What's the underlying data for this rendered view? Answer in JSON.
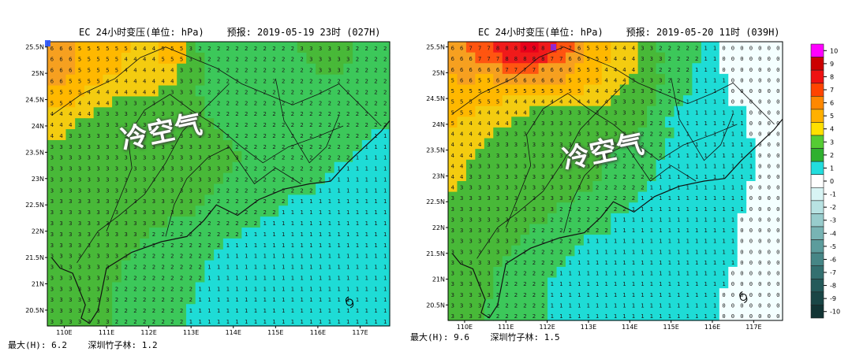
{
  "panels": [
    {
      "title": "EC 24小时变压(单位: hPa)    预报: 2019-05-19 23时 (027H)",
      "annotation": "冷空气",
      "stats": "最大(H): 6.2    深圳竹子林: 1.2",
      "x_ticks": [
        "110E",
        "111E",
        "112E",
        "113E",
        "114E",
        "115E",
        "116E",
        "117E"
      ],
      "y_ticks": [
        "25.5N",
        "25N",
        "24.5N",
        "24N",
        "23.5N",
        "23N",
        "22.5N",
        "22N",
        "21.5N",
        "21N",
        "20.5N"
      ]
    },
    {
      "title": "EC 24小时变压(单位: hPa)    预报: 2019-05-20 11时 (039H)",
      "annotation": "冷空气",
      "stats": "最大(H): 9.6    深圳竹子林: 1.5",
      "x_ticks": [
        "110E",
        "111E",
        "112E",
        "113E",
        "114E",
        "115E",
        "116E",
        "117E"
      ],
      "y_ticks": [
        "25.5N",
        "25N",
        "24.5N",
        "24N",
        "23.5N",
        "23N",
        "22.5N",
        "22N",
        "21.5N",
        "21N",
        "20.5N"
      ]
    }
  ],
  "chart_data": [
    {
      "type": "heatmap",
      "title": "EC 24小时变压(单位: hPa)",
      "forecast": "2019-05-19 23时 (027H)",
      "units": "hPa",
      "x_range": [
        109.6,
        117.7
      ],
      "y_range": [
        20.2,
        25.6
      ],
      "max_H": 6.2,
      "station_value": 1.2,
      "rows": [
        "6665555554445553222222222223333332222",
        "6665555544445553322222222222333332222",
        "6665555544444433322222222222233322222",
        "6655554444444433322222222222222222222",
        "5555444444443333222222222222222222222",
        "5554444333333333322222222222222222222",
        "4444433333333333322222222222222222222",
        "4443333333333333332222222222222222222",
        "4433333333333333333222222222222222211",
        "3333333333333333333322222222222222111",
        "3333333333333333333332222222222221111",
        "3333333333333333333322222222222111111",
        "3333333333333333333222222222221111111",
        "3333333333333333332222222222211111111",
        "3333333333333333322222222211111111111",
        "3333333333333333222222222111111111111",
        "3333333333333222222222211111111111111",
        "3333333333322222222221111111111111111",
        "3333333333222222222111111111111111111",
        "3333333332222222221111111111111111111",
        "3333333322222222211111111111111111111",
        "3333333322222222211111111111111111111",
        "3333333222222222111111111111111111111",
        "3333333222222222111111111111111111111",
        "3333333222222221111111111111111111111",
        "3333333222222221111111111111111111111"
      ]
    },
    {
      "type": "heatmap",
      "title": "EC 24小时变压(单位: hPa)",
      "forecast": "2019-05-20 11时 (039H)",
      "units": "hPa",
      "x_range": [
        109.6,
        117.7
      ],
      "y_range": [
        20.2,
        25.6
      ],
      "max_H": 9.6,
      "station_value": 1.5,
      "rows": [
        "6677788899887765554443322222110000000",
        "6667778888877665554443332222110000000",
        "6666667777666655544443322221110000000",
        "5665566666666555544433332221111000000",
        "5555555555555554444333322221111000000",
        "5555554444444444443333322211111000000",
        "5554444443333333333333222111111110000",
        "5444444333333333333333221111111110000",
        "4444433333333333333332222111111110000",
        "4444333333333333333222221111111111000",
        "4443333333333333332222221111111111000",
        "4433333333333333322222211111111111000",
        "4433333333333333322222211111111111000",
        "4333333333333333222222111111111110000",
        "3333333333333322222221111111111110000",
        "3333333333332222222211111111111110000",
        "3333333333322222221111111111111100000",
        "3333333332222222221111111111111100000",
        "3333333322222221111111111111111100000",
        "3333333222222211111111111111111100000",
        "3333332222222111111111111111111100000",
        "3333322222221111111111111111111000000",
        "3333322222211111111111111111111000000",
        "3333322222211111111111111111110000000",
        "3333222222211111111111111111110000000",
        "3333222222211111111111111111110000000"
      ]
    }
  ],
  "colorbar": {
    "levels": [
      "10",
      "9",
      "8",
      "7",
      "6",
      "5",
      "4",
      "3",
      "2",
      "1",
      "0",
      "-1",
      "-2",
      "-3",
      "-4",
      "-5",
      "-6",
      "-7",
      "-8",
      "-9",
      "-10"
    ],
    "colors": {
      "10": "#ff00ff",
      "9": "#cc0000",
      "8": "#ee1111",
      "7": "#ff4400",
      "6": "#ff8800",
      "5": "#ffb000",
      "4": "#ffe000",
      "3": "#55cc33",
      "2": "#2fb02f",
      "1": "#22dddd",
      "0": "#ffffff",
      "-1": "#d8f4f4",
      "-2": "#b8e2e2",
      "-3": "#98cccc",
      "-4": "#78b4b4",
      "-5": "#5c9c9c",
      "-6": "#468686",
      "-7": "#337070",
      "-8": "#245a5a",
      "-9": "#1a4646",
      "-10": "#123434"
    }
  },
  "cell_colors": {
    "9": "#e8001a",
    "8": "#f01a1a",
    "7": "#ff5510",
    "6": "#f6a020",
    "5": "#ffb800",
    "4": "#f4cc10",
    "3": "#48b938",
    "2": "#3cc85a",
    "1": "#1edcd6",
    "0": "#f4ffff"
  }
}
